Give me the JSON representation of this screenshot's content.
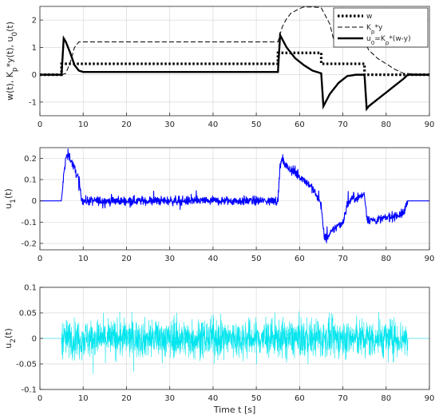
{
  "chart_data": [
    {
      "type": "line",
      "ylabel": "w(t), K_p*y(t), u_0(t)",
      "xlim": [
        0,
        90
      ],
      "ylim": [
        -1.5,
        2.5
      ],
      "xticks": [
        0,
        10,
        20,
        30,
        40,
        50,
        60,
        70,
        80,
        90
      ],
      "yticks": [
        -1,
        0,
        1,
        2
      ],
      "grid": true,
      "legend_position": "top-right",
      "series": [
        {
          "name": "w",
          "style": "dotted",
          "color": "#000000",
          "x": [
            0,
            5,
            5,
            55,
            55,
            65,
            65,
            75,
            75,
            90
          ],
          "y": [
            0,
            0,
            0.4,
            0.4,
            0.8,
            0.8,
            0.4,
            0.4,
            0,
            0
          ]
        },
        {
          "name": "K_p*y",
          "style": "dashed",
          "color": "#000000",
          "x": [
            0,
            5,
            6,
            7,
            8,
            9,
            10,
            55,
            56,
            57,
            58,
            60,
            61,
            62,
            63,
            65,
            67,
            68,
            70,
            75,
            76,
            78,
            80,
            82,
            84,
            90
          ],
          "y": [
            0,
            0,
            0.05,
            0.45,
            1.0,
            1.2,
            1.2,
            1.2,
            1.75,
            2.05,
            2.25,
            2.42,
            2.48,
            2.48,
            2.48,
            2.45,
            1.85,
            1.2,
            1.2,
            1.2,
            0.9,
            0.6,
            0.4,
            0.2,
            0.05,
            0
          ]
        },
        {
          "name": "u_0=K_p*(w-y)",
          "style": "solid",
          "color": "#000000",
          "x": [
            0,
            5,
            5.5,
            6,
            7,
            8,
            9,
            10,
            55,
            55.5,
            57,
            59,
            61,
            63,
            65,
            65.5,
            66,
            67,
            69,
            71,
            73,
            75,
            75.5,
            76,
            78,
            80,
            82,
            84,
            85,
            90
          ],
          "y": [
            0,
            0,
            1.33,
            1.2,
            0.8,
            0.35,
            0.15,
            0.1,
            0.1,
            1.45,
            1.0,
            0.6,
            0.35,
            0.15,
            0.05,
            -1.15,
            -1.0,
            -0.7,
            -0.3,
            -0.05,
            0,
            0,
            -1.25,
            -1.15,
            -0.9,
            -0.65,
            -0.4,
            -0.15,
            0,
            0
          ]
        }
      ]
    },
    {
      "type": "line",
      "ylabel": "u_1(t)",
      "xlim": [
        0,
        90
      ],
      "ylim": [
        -0.23,
        0.25
      ],
      "xticks": [
        0,
        10,
        20,
        30,
        40,
        50,
        60,
        70,
        80,
        90
      ],
      "yticks": [
        -0.2,
        -0.1,
        0,
        0.1,
        0.2
      ],
      "grid": true,
      "noise": 0.02,
      "series": [
        {
          "color": "#0000ff",
          "x": [
            0,
            5,
            5.5,
            6,
            6.5,
            7,
            8,
            9,
            9.5,
            10,
            15,
            20,
            30,
            40,
            50,
            55,
            55.5,
            56,
            57,
            59,
            61,
            63,
            64,
            65,
            65.5,
            66,
            67,
            68,
            70,
            71,
            72,
            74,
            75,
            75.5,
            76,
            78,
            80,
            82,
            84,
            85,
            90
          ],
          "y": [
            0,
            0,
            0.12,
            0.2,
            0.22,
            0.2,
            0.15,
            0.1,
            0.02,
            0,
            0,
            0,
            0,
            0,
            0,
            0,
            0.17,
            0.19,
            0.16,
            0.13,
            0.1,
            0.06,
            0.02,
            -0.02,
            -0.14,
            -0.18,
            -0.16,
            -0.13,
            -0.1,
            -0.02,
            0.01,
            0.02,
            0.03,
            -0.07,
            -0.09,
            -0.09,
            -0.08,
            -0.07,
            -0.06,
            0,
            0
          ]
        }
      ]
    },
    {
      "type": "line",
      "ylabel": "u_2(t)",
      "xlabel": "Time t [s]",
      "xlim": [
        0,
        90
      ],
      "ylim": [
        -0.1,
        0.1
      ],
      "xticks": [
        0,
        10,
        20,
        30,
        40,
        50,
        60,
        70,
        80,
        90
      ],
      "yticks": [
        -0.1,
        -0.05,
        0,
        0.05,
        0.1
      ],
      "grid": true,
      "noise_band": [
        5,
        85
      ],
      "noise": 0.035,
      "series": [
        {
          "color": "#00e5ee",
          "x": [
            0,
            5,
            85,
            90
          ],
          "y": [
            0,
            0,
            0,
            0
          ]
        }
      ]
    }
  ]
}
